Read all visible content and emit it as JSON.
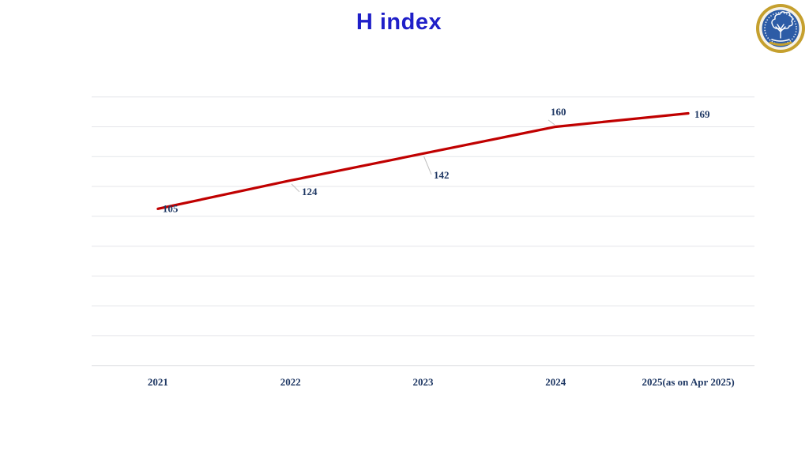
{
  "title": "H index",
  "title_color": "#1F1FC8",
  "logo": {
    "name": "institute-seal",
    "ring_color": "#C5A02E",
    "band_color": "#F6F2E7",
    "disc_color": "#2D5CA6",
    "emblem": "tree"
  },
  "chart_data": {
    "type": "line",
    "title": "H index",
    "categories": [
      "2021",
      "2022",
      "2023",
      "2024",
      "2025(as on Apr 2025)"
    ],
    "series": [
      {
        "name": "H index",
        "values": [
          105,
          124,
          142,
          160,
          169
        ],
        "color": "#C00000"
      }
    ],
    "show_data_labels": true,
    "xlabel": "",
    "ylabel": "",
    "ylim": [
      0,
      180
    ],
    "gridline_step": 20,
    "grid": true,
    "legend": "none",
    "label_color": "#1F3864",
    "gridline_color": "#E4E5E9",
    "leader_line_color": "#C0C0C0",
    "background_color": "#FFFFFF"
  }
}
